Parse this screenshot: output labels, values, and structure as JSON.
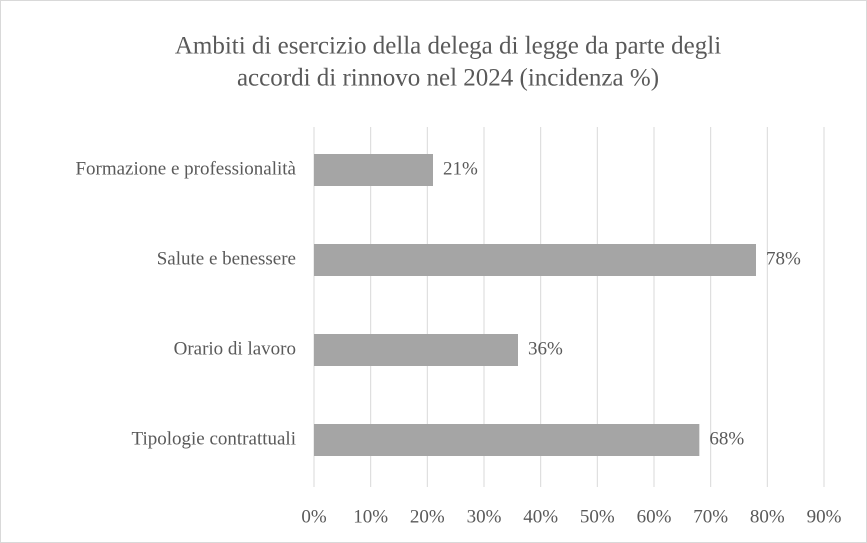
{
  "chart_data": {
    "type": "bar",
    "orientation": "horizontal",
    "title": [
      "Ambiti di esercizio della delega di legge da parte degli",
      "accordi di rinnovo nel 2024 (incidenza %)"
    ],
    "categories": [
      "Formazione e professionalità",
      "Salute e benessere",
      "Orario di lavoro",
      "Tipologie contrattuali"
    ],
    "values": [
      21,
      78,
      36,
      68
    ],
    "value_labels": [
      "21%",
      "78%",
      "36%",
      "68%"
    ],
    "color": "#a5a5a5",
    "xlim": [
      0,
      90
    ],
    "xticks": [
      {
        "value": 0,
        "label": "0%"
      },
      {
        "value": 10,
        "label": "10%"
      },
      {
        "value": 20,
        "label": "20%"
      },
      {
        "value": 30,
        "label": "30%"
      },
      {
        "value": 40,
        "label": "40%"
      },
      {
        "value": 50,
        "label": "50%"
      },
      {
        "value": 60,
        "label": "60%"
      },
      {
        "value": 70,
        "label": "70%"
      },
      {
        "value": 80,
        "label": "80%"
      },
      {
        "value": 90,
        "label": "90%"
      }
    ],
    "grid": true
  }
}
